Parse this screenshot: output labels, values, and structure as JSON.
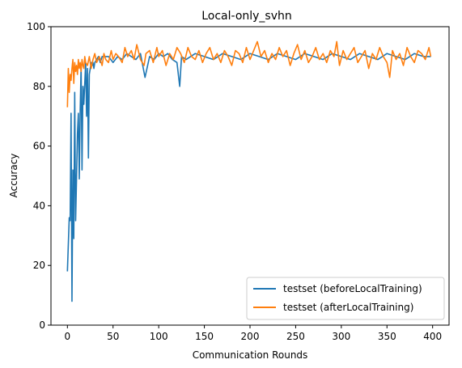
{
  "chart_data": {
    "type": "line",
    "title": "Local-only_svhn",
    "xlabel": "Communication Rounds",
    "ylabel": "Accuracy",
    "xlim": [
      -18,
      418
    ],
    "ylim": [
      0,
      100
    ],
    "xticks": [
      0,
      50,
      100,
      150,
      200,
      250,
      300,
      350,
      400
    ],
    "yticks": [
      0,
      20,
      40,
      60,
      80,
      100
    ],
    "grid": false,
    "legend_position": "lower-right",
    "series": [
      {
        "name": "testset (beforeLocalTraining)",
        "color": "#1f77b4",
        "x": [
          0,
          2,
          3,
          4,
          5,
          6,
          7,
          8,
          9,
          10,
          11,
          12,
          13,
          14,
          15,
          16,
          17,
          18,
          19,
          20,
          21,
          22,
          23,
          24,
          25,
          26,
          27,
          28,
          29,
          30,
          32,
          34,
          36,
          38,
          40,
          45,
          50,
          55,
          60,
          65,
          70,
          75,
          80,
          85,
          90,
          95,
          100,
          105,
          110,
          115,
          120,
          123,
          125,
          130,
          140,
          150,
          160,
          170,
          180,
          190,
          200,
          210,
          220,
          230,
          240,
          250,
          260,
          270,
          280,
          290,
          300,
          310,
          320,
          330,
          340,
          350,
          360,
          370,
          380,
          390,
          398
        ],
        "y": [
          18,
          36,
          35,
          71,
          8,
          52,
          29,
          78,
          35,
          49,
          64,
          71,
          49,
          72,
          87,
          52,
          80,
          74,
          81,
          88,
          70,
          86,
          56,
          84,
          86,
          88,
          87,
          88,
          86,
          88,
          89,
          90,
          88,
          90,
          90,
          90,
          88,
          90,
          89,
          91,
          90,
          89,
          91,
          83,
          90,
          89,
          91,
          90,
          91,
          89,
          88,
          80,
          90,
          89,
          91,
          90,
          89,
          91,
          90,
          89,
          91,
          90,
          89,
          91,
          90,
          89,
          91,
          90,
          89,
          91,
          90,
          89,
          91,
          90,
          89,
          91,
          90,
          89,
          91,
          90,
          90
        ]
      },
      {
        "name": "testset (afterLocalTraining)",
        "color": "#ff7f0e",
        "x": [
          0,
          1,
          2,
          3,
          4,
          5,
          6,
          7,
          8,
          9,
          10,
          11,
          12,
          13,
          14,
          15,
          16,
          17,
          18,
          19,
          20,
          22,
          24,
          26,
          28,
          30,
          32,
          35,
          38,
          40,
          42,
          45,
          48,
          50,
          53,
          56,
          60,
          63,
          66,
          70,
          73,
          76,
          80,
          84,
          86,
          90,
          94,
          98,
          100,
          104,
          108,
          112,
          116,
          120,
          124,
          128,
          132,
          136,
          140,
          144,
          148,
          152,
          156,
          160,
          164,
          168,
          172,
          176,
          180,
          184,
          188,
          192,
          196,
          200,
          204,
          208,
          212,
          216,
          220,
          224,
          228,
          232,
          236,
          240,
          244,
          248,
          252,
          256,
          260,
          264,
          268,
          272,
          276,
          280,
          284,
          288,
          292,
          295,
          298,
          302,
          306,
          310,
          314,
          318,
          322,
          326,
          330,
          334,
          338,
          342,
          346,
          350,
          353,
          356,
          360,
          364,
          368,
          372,
          376,
          380,
          384,
          388,
          392,
          396,
          398
        ],
        "y": [
          73,
          86,
          78,
          84,
          82,
          86,
          89,
          81,
          88,
          85,
          87,
          84,
          89,
          86,
          88,
          85,
          89,
          87,
          86,
          90,
          88,
          87,
          90,
          86,
          89,
          91,
          88,
          90,
          87,
          91,
          89,
          88,
          92,
          89,
          91,
          90,
          88,
          93,
          90,
          92,
          89,
          94,
          89,
          87,
          91,
          92,
          88,
          93,
          90,
          92,
          87,
          91,
          89,
          93,
          91,
          88,
          93,
          90,
          89,
          92,
          88,
          91,
          93,
          89,
          91,
          88,
          92,
          90,
          87,
          92,
          91,
          88,
          93,
          89,
          92,
          95,
          90,
          92,
          88,
          91,
          89,
          93,
          90,
          92,
          87,
          91,
          94,
          89,
          92,
          88,
          90,
          93,
          89,
          91,
          88,
          92,
          90,
          95,
          87,
          92,
          89,
          91,
          93,
          88,
          90,
          92,
          86,
          91,
          89,
          93,
          90,
          88,
          83,
          92,
          89,
          91,
          87,
          93,
          90,
          88,
          92,
          91,
          89,
          93,
          90
        ]
      }
    ]
  }
}
